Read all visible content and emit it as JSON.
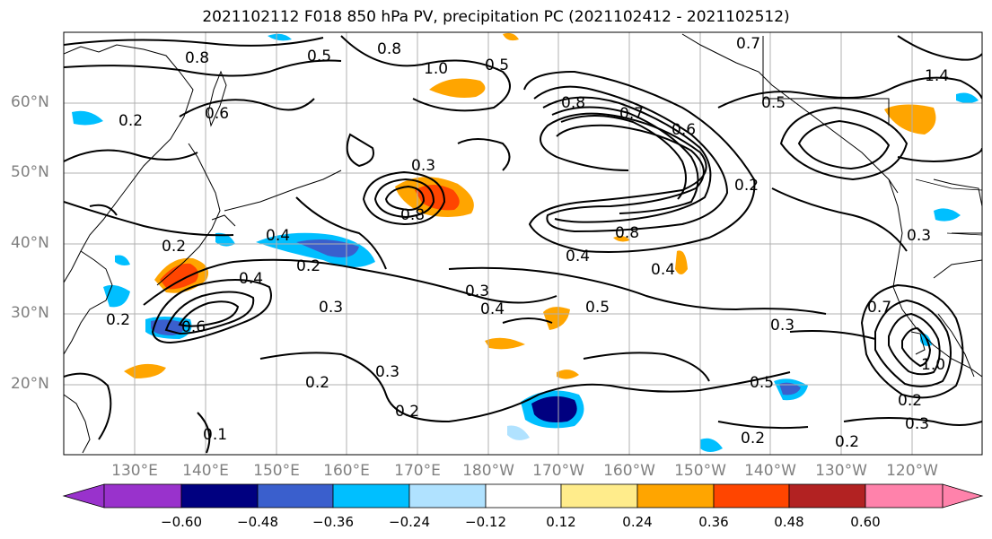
{
  "title": "2021102112 F018 850 hPa PV, precipitation PC (2021102412 - 2021102512)",
  "axes": {
    "lat_labels": [
      "60°N",
      "50°N",
      "40°N",
      "30°N",
      "20°N"
    ],
    "lon_labels": [
      "130°E",
      "140°E",
      "150°E",
      "160°E",
      "170°E",
      "180°W",
      "170°W",
      "160°W",
      "150°W",
      "140°W",
      "130°W",
      "120°W"
    ]
  },
  "colorbar": {
    "tick_labels": [
      "−0.60",
      "−0.48",
      "−0.36",
      "−0.24",
      "−0.12",
      "0.12",
      "0.24",
      "0.36",
      "0.48",
      "0.60"
    ],
    "colors": [
      "#9932cc",
      "#000080",
      "#3a5fcd",
      "#00bfff",
      "#b0e2ff",
      "#ffffff",
      "#ffec8b",
      "#ffa500",
      "#ff4500",
      "#b22222",
      "#ff82ab"
    ]
  },
  "contour_labels": [
    "0.8",
    "0.5",
    "0.8",
    "1.0",
    "0.5",
    "0.7",
    "1.4",
    "0.6",
    "0.2",
    "0.8",
    "0.7",
    "0.6",
    "0.5",
    "0.3",
    "0.8",
    "0.2",
    "0.4",
    "0.2",
    "0.2",
    "0.8",
    "0.4",
    "0.4",
    "0.6",
    "0.3",
    "0.3",
    "0.4",
    "0.5",
    "0.3",
    "0.2",
    "0.4",
    "0.2",
    "0.2",
    "0.3",
    "0.5",
    "0.2",
    "0.2",
    "0.2",
    "1.0",
    "0.7",
    "0.3",
    "0.3",
    "0.1"
  ]
}
